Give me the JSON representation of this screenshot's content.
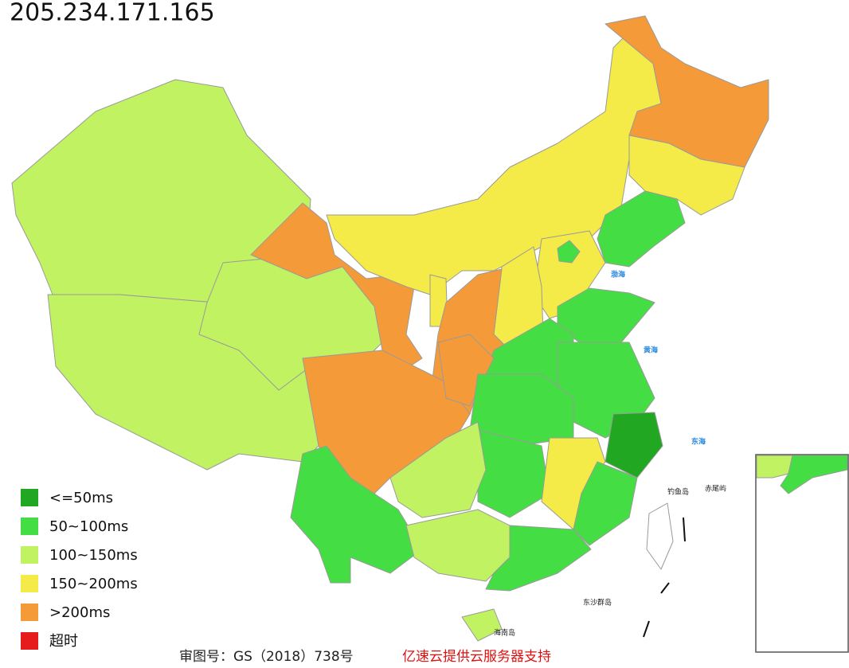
{
  "title": "205.234.171.165",
  "legend": [
    {
      "label": "<=50ms",
      "color": "#22a722"
    },
    {
      "label": "50~100ms",
      "color": "#44dd44"
    },
    {
      "label": "100~150ms",
      "color": "#c0f262"
    },
    {
      "label": "150~200ms",
      "color": "#f4ea48"
    },
    {
      "label": ">200ms",
      "color": "#f49a38"
    },
    {
      "label": "超时",
      "color": "#e61c1c"
    }
  ],
  "map_labels": [
    "渤海",
    "黄海",
    "东海",
    "钓鱼岛",
    "赤尾屿",
    "东沙群岛",
    "海南岛"
  ],
  "footer": {
    "approval": "审图号：GS（2018）738号",
    "sponsor": "亿速云提供云服务器支持"
  }
}
